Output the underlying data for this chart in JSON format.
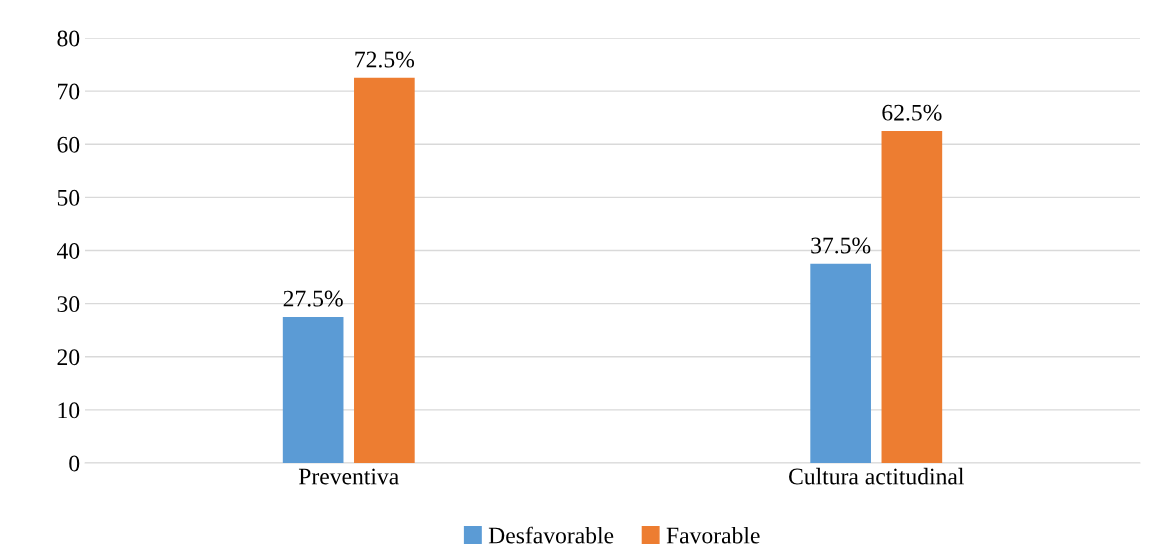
{
  "chart_data": {
    "type": "bar",
    "categories": [
      "Preventiva",
      "Cultura actitudinal"
    ],
    "series": [
      {
        "name": "Desfavorable",
        "color": "#5b9bd5",
        "values": [
          27.5,
          37.5
        ],
        "value_labels": [
          "27.5%",
          "37.5%"
        ]
      },
      {
        "name": "Favorable",
        "color": "#ed7d31",
        "values": [
          72.5,
          62.5
        ],
        "value_labels": [
          "72.5%",
          "62.5%"
        ]
      }
    ],
    "ylim": [
      0,
      80
    ],
    "yticks": [
      0,
      10,
      20,
      30,
      40,
      50,
      60,
      70,
      80
    ],
    "grid": "y",
    "legend": "bottom"
  }
}
